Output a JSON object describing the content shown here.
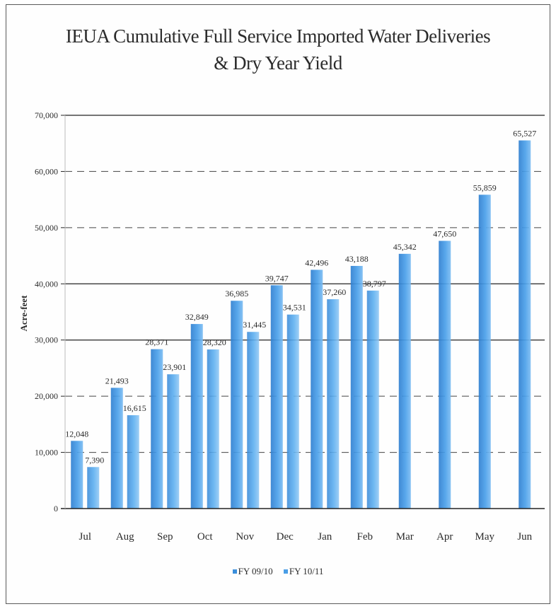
{
  "chart_data": {
    "type": "bar",
    "title_line1": "IEUA Cumulative Full Service Imported Water Deliveries",
    "title_line2": "& Dry Year Yield",
    "ylabel": "Acre-feet",
    "xlabel": "",
    "ylim": [
      0,
      70000
    ],
    "yticks": [
      0,
      10000,
      20000,
      30000,
      40000,
      50000,
      60000,
      70000
    ],
    "ytick_labels": [
      "0",
      "10,000",
      "20,000",
      "30,000",
      "40,000",
      "50,000",
      "60,000",
      "70,000"
    ],
    "categories": [
      "Jul",
      "Aug",
      "Sep",
      "Oct",
      "Nov",
      "Dec",
      "Jan",
      "Feb",
      "Mar",
      "Apr",
      "May",
      "Jun"
    ],
    "series": [
      {
        "name": "FY 09/10",
        "values": [
          12048,
          21493,
          28371,
          32849,
          36985,
          39747,
          42496,
          43188,
          45342,
          47650,
          55859,
          65527
        ],
        "labels": [
          "12,048",
          "21,493",
          "28,371",
          "32,849",
          "36,985",
          "39,747",
          "42,496",
          "43,188",
          "45,342",
          "47,650",
          "55,859",
          "65,527"
        ]
      },
      {
        "name": "FY 10/11",
        "values": [
          7390,
          16615,
          23901,
          28320,
          31445,
          34531,
          37260,
          38797,
          null,
          null,
          null,
          null
        ],
        "labels": [
          "7,390",
          "16,615",
          "23,901",
          "28,320",
          "31,445",
          "34,531",
          "37,260",
          "38,797",
          "",
          "",
          "",
          ""
        ]
      }
    ],
    "legend_position": "bottom",
    "grid": true,
    "colors": {
      "fy0910": "#3b8fdc",
      "fy1011": "#4a9ee6",
      "solid_grid": "#222222",
      "dash_grid": "#444444"
    }
  }
}
